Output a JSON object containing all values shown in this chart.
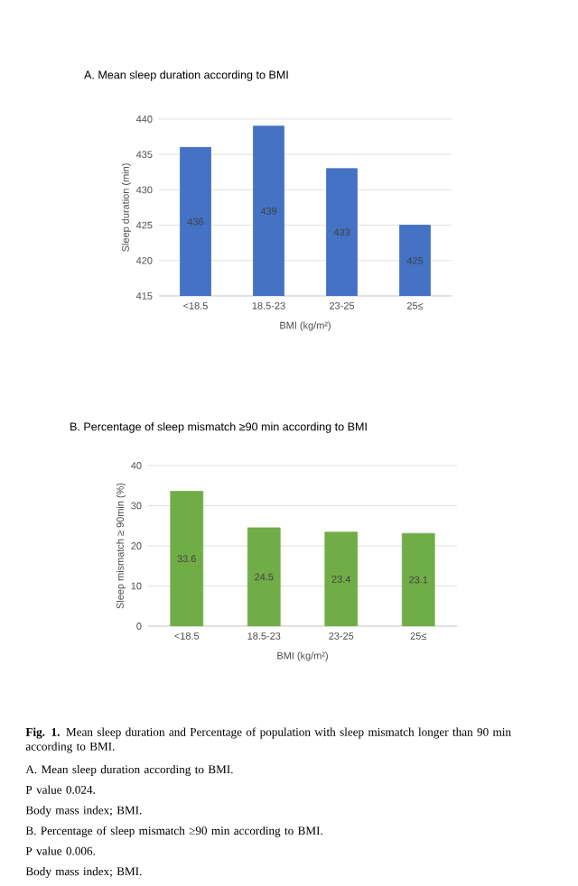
{
  "chart_data": [
    {
      "type": "bar",
      "title": "A. Mean sleep duration according to BMI",
      "xlabel": "BMI (kg/m²)",
      "ylabel": "Sleep duration (min)",
      "categories": [
        "<18.5",
        "18.5-23",
        "23-25",
        "25≤"
      ],
      "values": [
        436,
        439,
        433,
        425
      ],
      "color": "#4472c4",
      "ylim": [
        415,
        440
      ],
      "yticks": [
        415,
        420,
        425,
        430,
        435,
        440
      ],
      "grid": "y",
      "data_labels": true
    },
    {
      "type": "bar",
      "title": "B. Percentage of sleep mismatch ≥90 min according to BMI",
      "xlabel": "BMI (kg/m²)",
      "ylabel": "Sleep mismatch ≥ 90min (%)",
      "categories": [
        "<18.5",
        "18.5-23",
        "23-25",
        "25≤"
      ],
      "values": [
        33.6,
        24.5,
        23.4,
        23.1
      ],
      "color": "#70ad47",
      "ylim": [
        0,
        40
      ],
      "yticks": [
        0,
        10,
        20,
        30,
        40
      ],
      "grid": "y",
      "data_labels": true,
      "annotations": [
        "**Fig. 1.** Mean sleep duration and Percentage of population with sleep mismatch longer than 90 min according to BMI.",
        "A. Mean sleep duration according to BMI.",
        "P value    0.024.",
        "Body mass index; BMI.",
        "B. Percentage of sleep mismatch ≥90 min according to BMI.",
        "P value    0.006.",
        "Body mass index; BMI."
      ]
    }
  ]
}
